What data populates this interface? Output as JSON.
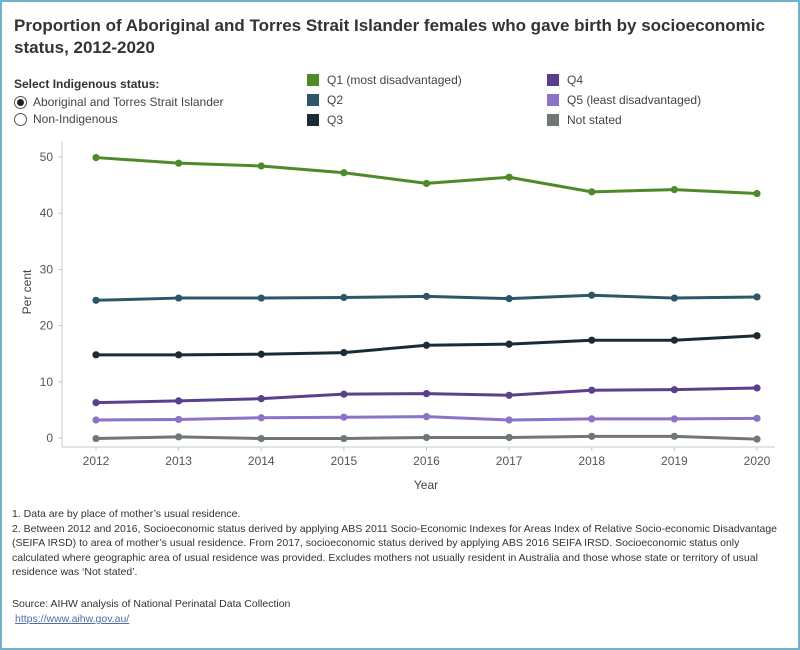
{
  "title": "Proportion of Aboriginal and Torres Strait Islander females who gave birth by socioeconomic status, 2012-2020",
  "filter": {
    "label": "Select Indigenous status:",
    "options": [
      {
        "label": "Aboriginal and Torres Strait Islander",
        "selected": true
      },
      {
        "label": "Non-Indigenous",
        "selected": false
      }
    ]
  },
  "notes": [
    "1. Data are by place of mother’s usual residence.",
    "2. Between 2012 and 2016, Socioeconomic status derived by applying ABS 2011 Socio-Economic Indexes for Areas Index of Relative Socio-economic Disadvantage (SEIFA IRSD) to area of mother’s usual residence. From 2017, socioeconomic status derived by applying ABS 2016 SEIFA IRSD. Socioeconomic status only calculated where geographic area of usual residence was provided. Excludes mothers not usually resident in Australia and those whose state or territory of usual residence was ‘Not stated’."
  ],
  "source": "Source: AIHW analysis of National Perinatal Data Collection",
  "link": "https://www.aihw.gov.au/",
  "chart_data": {
    "type": "line",
    "title": "Proportion of Aboriginal and Torres Strait Islander females who gave birth by socioeconomic status, 2012-2020",
    "xlabel": "Year",
    "ylabel": "Per cent",
    "x": [
      "2012",
      "2013",
      "2014",
      "2015",
      "2016",
      "2017",
      "2018",
      "2019",
      "2020"
    ],
    "ylim": [
      0,
      52
    ],
    "yticks": [
      0,
      10,
      20,
      30,
      40,
      50
    ],
    "grid": false,
    "legend_position": "top",
    "series": [
      {
        "name": "Q1 (most disadvantaged)",
        "color": "#4e8a2a",
        "values": [
          49.9,
          48.9,
          48.4,
          47.2,
          45.3,
          46.4,
          43.8,
          44.2,
          43.5
        ]
      },
      {
        "name": "Q2",
        "color": "#2c5767",
        "values": [
          24.5,
          24.9,
          24.9,
          25.0,
          25.2,
          24.8,
          25.4,
          24.9,
          25.1
        ]
      },
      {
        "name": "Q3",
        "color": "#1b2b36",
        "values": [
          14.8,
          14.8,
          14.9,
          15.2,
          16.5,
          16.7,
          17.4,
          17.4,
          18.2
        ]
      },
      {
        "name": "Q4",
        "color": "#5a3f8c",
        "values": [
          6.3,
          6.6,
          7.0,
          7.8,
          7.9,
          7.6,
          8.5,
          8.6,
          8.9
        ]
      },
      {
        "name": "Q5 (least disadvantaged)",
        "color": "#8b73c7",
        "values": [
          3.2,
          3.3,
          3.6,
          3.7,
          3.8,
          3.2,
          3.4,
          3.4,
          3.5
        ]
      },
      {
        "name": "Not stated",
        "color": "#707777",
        "values": [
          -0.1,
          0.2,
          -0.1,
          -0.1,
          0.1,
          0.1,
          0.3,
          0.3,
          -0.2
        ]
      }
    ]
  }
}
